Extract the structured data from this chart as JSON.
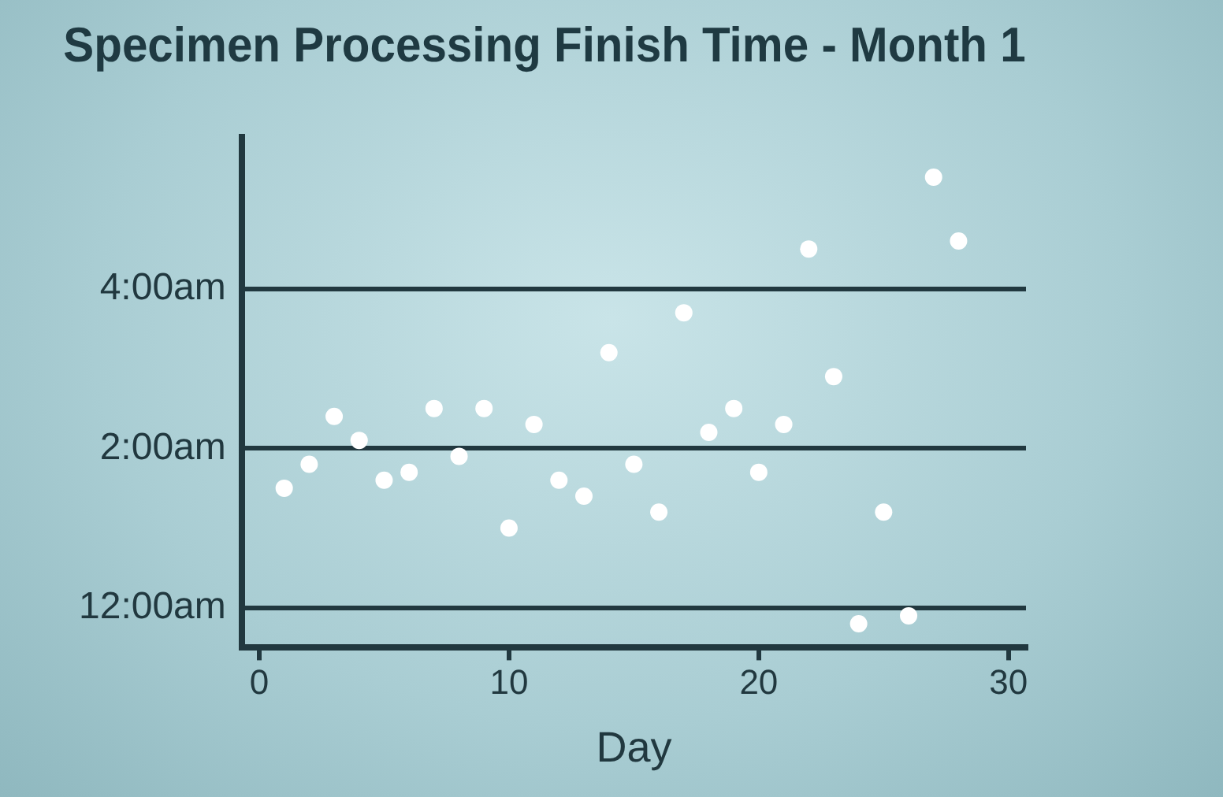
{
  "chart_data": {
    "type": "scatter",
    "title": "Specimen Processing Finish Time - Month 1",
    "xlabel": "Day",
    "x": [
      1,
      2,
      3,
      4,
      5,
      6,
      7,
      8,
      9,
      10,
      11,
      12,
      13,
      14,
      15,
      16,
      17,
      18,
      19,
      20,
      21,
      22,
      23,
      24,
      25,
      26,
      27,
      28
    ],
    "series": [
      {
        "color": "#ffffff",
        "values": [
          1.5,
          1.8,
          2.4,
          2.1,
          1.6,
          1.7,
          2.5,
          1.9,
          2.5,
          1.0,
          2.3,
          1.6,
          1.4,
          3.2,
          1.8,
          1.2,
          3.7,
          2.2,
          2.5,
          1.7,
          2.3,
          4.5,
          2.9,
          -0.2,
          1.2,
          -0.1,
          5.4,
          4.6
        ]
      }
    ],
    "xlim": [
      -0.7,
      30.7
    ],
    "xticks": [
      0,
      10,
      20,
      30
    ],
    "ylim": [
      -0.5,
      5.9
    ],
    "yticks": [
      {
        "value": 0,
        "label": "12:00am"
      },
      {
        "value": 2,
        "label": "2:00am"
      },
      {
        "value": 4,
        "label": "4:00am"
      }
    ],
    "grid": "y",
    "legend": false,
    "marker": "circle"
  }
}
